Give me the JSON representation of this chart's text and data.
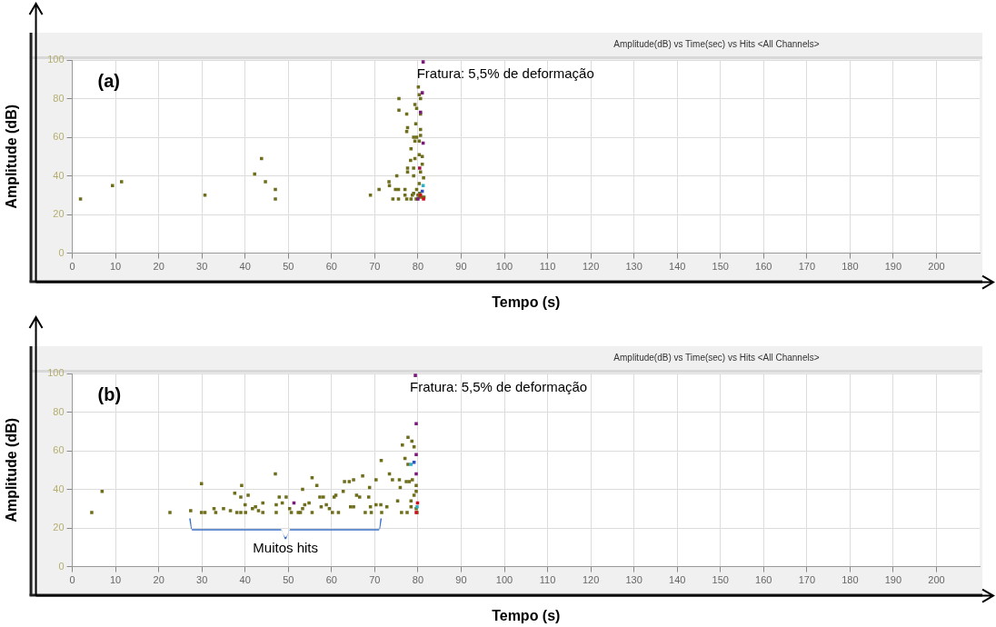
{
  "chart_data": [
    {
      "type": "scatter",
      "title": "Amplitude(dB) vs Time(sec) vs Hits <All Channels>",
      "xlabel": "Tempo (s)",
      "ylabel": "Amplitude (dB)",
      "xlim": [
        0,
        210
      ],
      "xticks": [
        0,
        10,
        20,
        30,
        40,
        50,
        60,
        70,
        80,
        90,
        100,
        110,
        120,
        130,
        140,
        150,
        160,
        170,
        180,
        190,
        200
      ],
      "ylim": [
        0,
        100
      ],
      "yticks": [
        0,
        20,
        40,
        60,
        80,
        100
      ],
      "grid": true,
      "marker": "square",
      "annotations": [
        "(a)",
        {
          "text": "Fratura: 5,5% de deformação",
          "x": 81,
          "y": 99
        }
      ],
      "series": [
        {
          "color": "#6e6e1c",
          "x": [
            1.9,
            9.3,
            11.4,
            30.7,
            42.2,
            43.8,
            44.7,
            47,
            47,
            69,
            71,
            73.3,
            73.4,
            75.1,
            75.6,
            75.6,
            74.8,
            75.5,
            74.2,
            75.5,
            77,
            77,
            77.4,
            77.4,
            77.6,
            77.4,
            78.4,
            78.3,
            77.6,
            77.6,
            79,
            79,
            79.3,
            79.3,
            79.7,
            79.5,
            79,
            79.3,
            79.7,
            80.1,
            80.3,
            80.6,
            80.6,
            80.6,
            80.6,
            80.3,
            80.3,
            81,
            81,
            80.6,
            81.3,
            80.3,
            79,
            79.7,
            80,
            80.3,
            81,
            81.4,
            80.4,
            79.6,
            78.4,
            78.7
          ],
          "values": [
            28,
            35,
            37,
            30,
            41,
            49,
            37,
            33,
            28,
            30,
            33,
            37,
            35,
            40,
            80,
            74,
            33,
            33,
            28,
            28,
            33,
            30,
            28,
            72,
            65,
            63,
            54,
            48,
            44,
            42,
            40,
            44,
            49,
            77,
            75,
            67,
            60,
            58,
            60,
            86,
            82,
            80,
            72,
            64,
            61,
            58,
            51,
            50,
            46,
            42,
            39,
            36,
            31,
            33,
            30,
            29,
            29,
            29,
            31,
            28,
            28,
            30
          ]
        },
        {
          "colors": [
            "#7a1a7a",
            "#7a1a7a",
            "#7a1a7a",
            "#7a1a7a",
            "#a01040",
            "#30b0c8",
            "#d01020",
            "#d01020",
            "#7a1a7a",
            "#3050c0"
          ],
          "x": [
            81.2,
            81,
            80.6,
            81.2,
            80.4,
            81.2,
            80.6,
            81.3,
            80,
            81
          ],
          "values": [
            99,
            83,
            73,
            57,
            44,
            35,
            30,
            28,
            28,
            32
          ]
        }
      ]
    },
    {
      "type": "scatter",
      "title": "Amplitude(dB) vs Time(sec) vs Hits <All Channels>",
      "xlabel": "Tempo (s)",
      "ylabel": "Amplitude (dB)",
      "xlim": [
        0,
        210
      ],
      "xticks": [
        0,
        10,
        20,
        30,
        40,
        50,
        60,
        70,
        80,
        90,
        100,
        110,
        120,
        130,
        140,
        150,
        160,
        170,
        180,
        190,
        200
      ],
      "ylim": [
        0,
        100
      ],
      "yticks": [
        0,
        20,
        40,
        60,
        80,
        100
      ],
      "grid": true,
      "marker": "square",
      "annotations": [
        "(b)",
        {
          "text": "Fratura: 5,5% de deformação",
          "x": 79.4,
          "y": 99
        },
        "Muitos hits"
      ],
      "series": [
        {
          "color": "#6e6e1c",
          "x": [
            4.5,
            6.9,
            22.6,
            27.4,
            29.9,
            29.9,
            30.7,
            32.8,
            33.2,
            35,
            36.6,
            37.6,
            38.1,
            39,
            39,
            39.2,
            40,
            40.1,
            40.7,
            41.7,
            42.4,
            43.1,
            44.1,
            44.1,
            47,
            47.2,
            47.2,
            47.9,
            48.6,
            49.5,
            50.3,
            50.7,
            52.3,
            52.8,
            53.3,
            53.3,
            53.8,
            54.8,
            55.5,
            55.5,
            56.6,
            57.3,
            57.6,
            58.1,
            58.8,
            59.5,
            60.6,
            61,
            60.2,
            61.6,
            62.7,
            63,
            64.1,
            65.1,
            64.4,
            65.1,
            65.8,
            66.5,
            67.2,
            67.8,
            68.6,
            68.8,
            69,
            69.2,
            70.3,
            70.3,
            71.4,
            71.5,
            71.6,
            72.8,
            73.4,
            74.1,
            75.3,
            75.7,
            75.9,
            76.2,
            76.4,
            77,
            77.3,
            77.5,
            77.7,
            77.7,
            78,
            78.4,
            78.6,
            78.7,
            79.1,
            79.1,
            79.6,
            79.6,
            79.6,
            79.8,
            78.4
          ],
          "values": [
            28,
            39,
            28,
            29,
            43,
            28,
            28,
            30,
            28,
            30,
            29,
            38,
            28,
            28,
            36,
            42,
            32,
            28,
            37,
            30,
            31,
            29,
            33,
            28,
            48,
            32,
            28,
            36,
            33,
            36,
            30,
            28,
            28,
            28,
            30,
            40,
            32,
            33,
            46,
            28,
            42,
            36,
            31,
            36,
            32,
            30,
            36,
            37,
            28,
            28,
            39,
            44,
            44,
            45,
            31,
            31,
            37,
            36,
            47,
            28,
            36,
            41,
            31,
            28,
            45,
            32,
            32,
            55,
            28,
            31,
            48,
            45,
            34,
            45,
            41,
            28,
            63,
            56,
            44,
            28,
            67,
            53,
            44,
            34,
            65,
            45,
            62,
            37,
            42,
            39,
            30,
            28,
            31
          ]
        },
        {
          "colors": [
            "#7a1a7a",
            "#7a1a7a",
            "#7a1a7a",
            "#7a1a7a",
            "#7a1a7a",
            "#30b0c8",
            "#3050c0",
            "#30b0c8",
            "#d01020",
            "#d01020"
          ],
          "x": [
            51.3,
            79.4,
            79.6,
            79.6,
            79.6,
            78.4,
            79.1,
            79.8,
            79.6,
            79.9
          ],
          "values": [
            33,
            99,
            74,
            58,
            48,
            53,
            54,
            31,
            28,
            33
          ]
        }
      ]
    }
  ]
}
